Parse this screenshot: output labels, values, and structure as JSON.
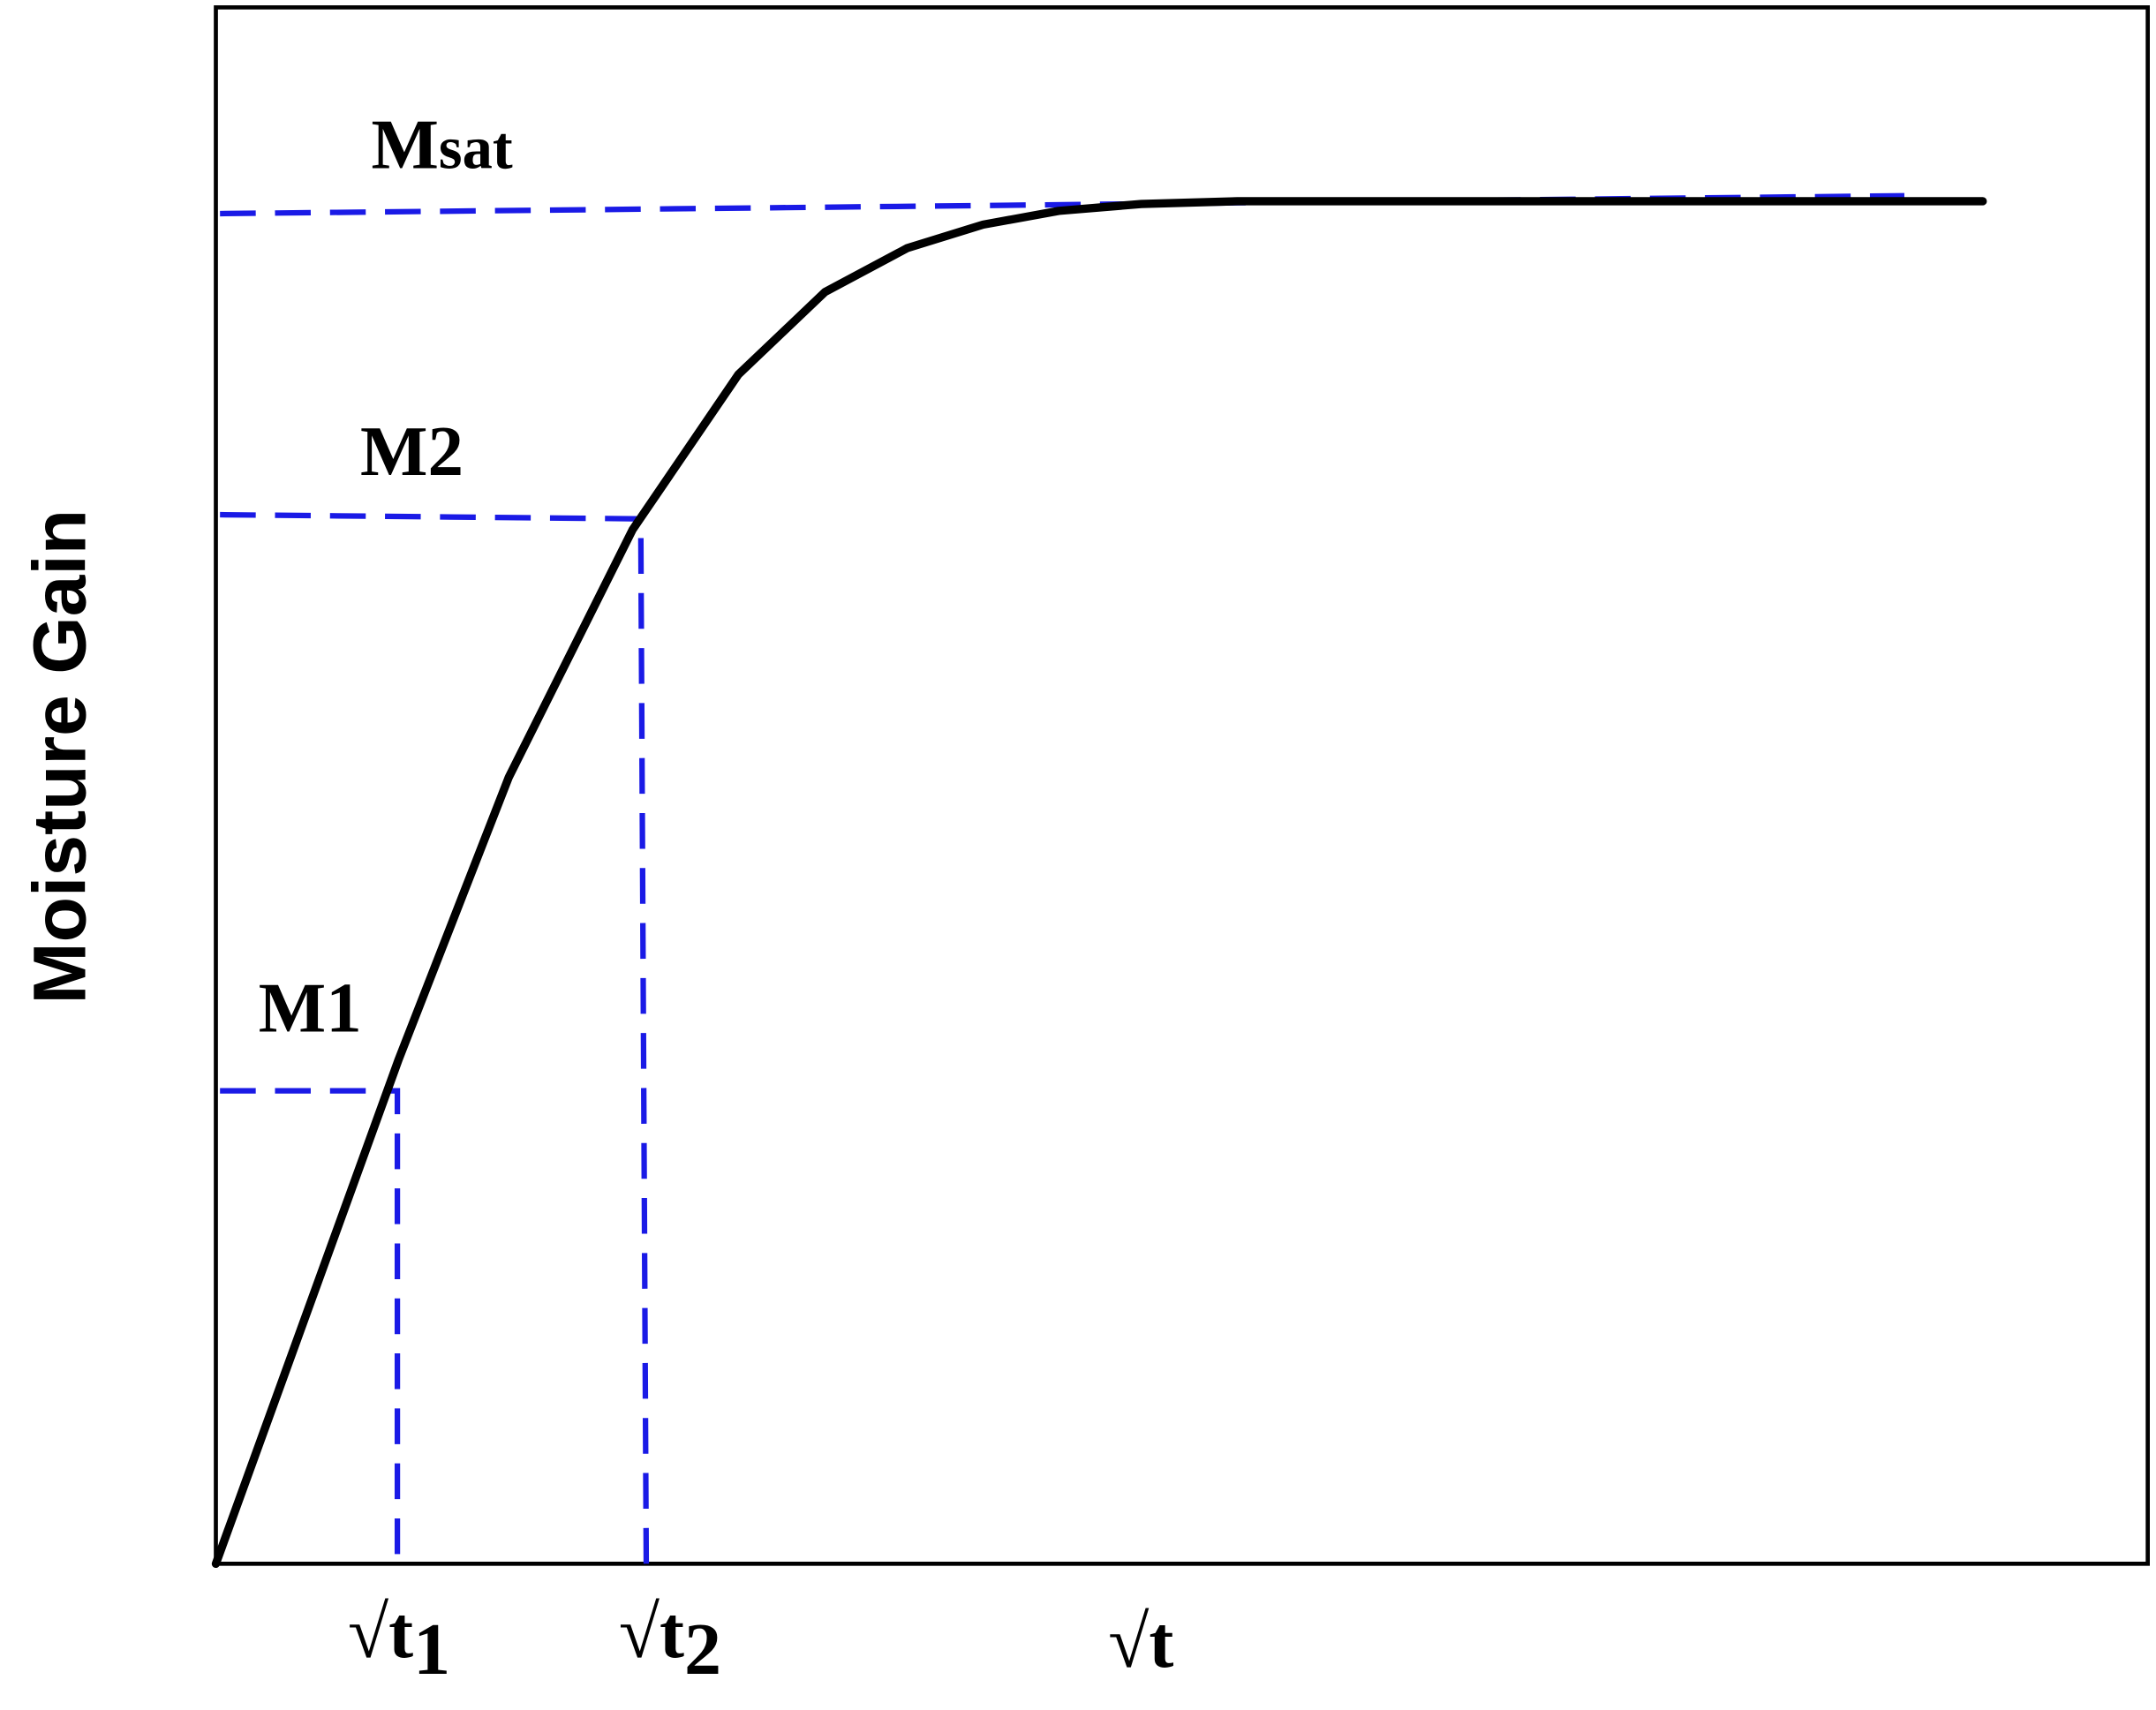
{
  "axis_label": "Moisture Gain",
  "levels": [
    {
      "base": "M",
      "sub": "sat"
    },
    {
      "base": "M",
      "sub": "2"
    },
    {
      "base": "M",
      "sub": "1"
    }
  ],
  "x_labels": [
    {
      "base": "√t",
      "sub": "1"
    },
    {
      "base": "√t",
      "sub": "2"
    },
    {
      "base": "√t"
    }
  ]
}
